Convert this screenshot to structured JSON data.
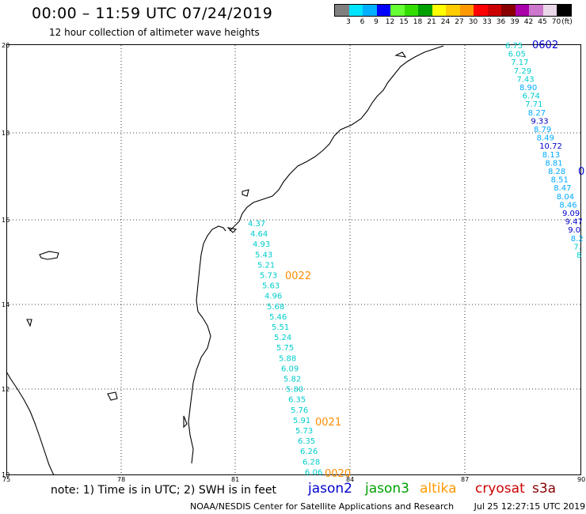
{
  "header": {
    "title": "00:00 – 11:59 UTC 07/24/2019",
    "subtitle": "12 hour collection of altimeter wave heights"
  },
  "legend": {
    "unit": "(ft)",
    "colors": [
      "#808080",
      "#00e5ff",
      "#00b0ff",
      "#0000ff",
      "#66ff33",
      "#33dd00",
      "#00a000",
      "#ffff00",
      "#ffcc00",
      "#ff9900",
      "#ff0000",
      "#cc0000",
      "#880000",
      "#aa00aa",
      "#cc77cc",
      "#e8d8e8",
      "#000000"
    ],
    "labels": [
      "3",
      "6",
      "9",
      "12",
      "15",
      "18",
      "21",
      "24",
      "27",
      "30",
      "33",
      "36",
      "39",
      "42",
      "45",
      "70"
    ]
  },
  "axes": {
    "lat_labels": [
      "20",
      "18",
      "16",
      "14",
      "12",
      "10"
    ],
    "lon_labels": [
      "75",
      "78",
      "81",
      "84",
      "87",
      "90"
    ]
  },
  "tracks": [
    {
      "id": "0022",
      "label_color": "#ff8c00",
      "values": [
        "4.37",
        "4.64",
        "4.93",
        "5.43",
        "5.21",
        "5.73",
        "5.63",
        "4.96",
        "5.68",
        "5.46",
        "5.51",
        "5.24",
        "5.75",
        "5.88",
        "6.09",
        "5.82",
        "5.80",
        "6.35",
        "5.76",
        "5.91",
        "5.73",
        "6.35",
        "6.26",
        "6.28",
        "6.06"
      ],
      "value_colors": [
        "#00cccc"
      ]
    }
  ],
  "track_tags": [
    {
      "text": "0022",
      "color": "#ff8c00"
    },
    {
      "text": "0021",
      "color": "#ff8c00"
    },
    {
      "text": "0020",
      "color": "#ff8c00"
    },
    {
      "text": "0602",
      "color": "#0000cc"
    },
    {
      "text": "0",
      "color": "#0000cc"
    }
  ],
  "track2": {
    "values": [
      "6.75",
      "6.05",
      "7.17",
      "7.29",
      "7.43",
      "8.90",
      "6.74",
      "7.71",
      "8.27",
      "9.33",
      "8.79",
      "8.49",
      "10.72",
      "8.13",
      "8.81",
      "8.28",
      "8.51",
      "8.47",
      "8.04",
      "8.46",
      "9.09",
      "9.47",
      "9.0",
      "8.2",
      "7.",
      "8"
    ],
    "colors": [
      "#00cccc",
      "#00cccc",
      "#00cccc",
      "#00cccc",
      "#00cccc",
      "#00aaff",
      "#00cccc",
      "#00cccc",
      "#00aaff",
      "#0000bb",
      "#00aaff",
      "#00aaff",
      "#0000cc",
      "#00aaff",
      "#00aaff",
      "#00aaff",
      "#00aaff",
      "#00aaff",
      "#00aaff",
      "#00aaff",
      "#0000cc",
      "#0000cc",
      "#0000cc",
      "#00aaff",
      "#00cccc",
      "#00cccc"
    ]
  },
  "notes": "note: 1) Time is in UTC; 2) SWH is in feet",
  "satellites": [
    {
      "name": "jason2",
      "color": "#0000cc"
    },
    {
      "name": "jason3",
      "color": "#00a000"
    },
    {
      "name": "altika",
      "color": "#ff9900"
    },
    {
      "name": "cryosat",
      "color": "#cc0000"
    },
    {
      "name": "s3a",
      "color": "#880000"
    }
  ],
  "footer": {
    "credit": "NOAA/NESDIS Center for Satellite Applications and Research",
    "timestamp": "Jul 25 12:27:15 UTC 2019"
  }
}
